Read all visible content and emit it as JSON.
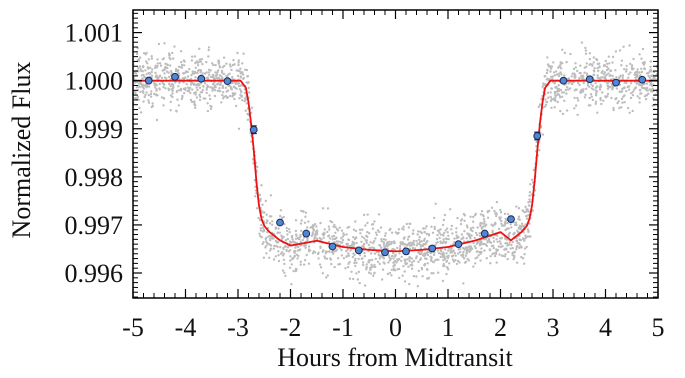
{
  "chart_data": {
    "type": "scatter",
    "title": "",
    "xlabel": "Hours from Midtransit",
    "ylabel": "Normalized Flux",
    "xlim": [
      -5,
      5
    ],
    "ylim": [
      0.99548,
      1.00147
    ],
    "xticks": [
      -5,
      -4,
      -3,
      -2,
      -1,
      0,
      1,
      2,
      3,
      4,
      5
    ],
    "xtick_labels": [
      "-5",
      "-4",
      "-3",
      "-2",
      "-1",
      "0",
      "1",
      "2",
      "3",
      "4",
      "5"
    ],
    "yticks": [
      0.996,
      0.997,
      0.998,
      0.999,
      1.0,
      1.001
    ],
    "ytick_labels": [
      "0.996",
      "0.997",
      "0.998",
      "0.999",
      "1.000",
      "1.001"
    ],
    "grid": false,
    "colors": {
      "raw_points": "#bdbdbd",
      "model_line": "#ee1111",
      "binned_fill": "#4f86d6",
      "binned_edge": "#1a2a55",
      "axes": "#000000"
    },
    "series": [
      {
        "kind": "scatter",
        "marker": "dot",
        "description_of_values": "unbinned normalized flux, scatter ~0.00028 about the transit model",
        "x_range": [
          -5,
          5
        ]
      },
      {
        "kind": "line",
        "x": [
          -5.0,
          -2.95,
          -2.85,
          -2.8,
          -2.75,
          -2.7,
          -2.65,
          -2.6,
          -2.55,
          -2.5,
          -2.4,
          -2.2,
          -2.0,
          -1.5,
          -1.0,
          -0.5,
          0.0,
          0.5,
          1.0,
          1.5,
          2.0,
          2.2,
          2.4,
          2.5,
          2.55,
          2.6,
          2.65,
          2.7,
          2.75,
          2.8,
          2.85,
          2.95,
          5.0
        ],
        "y": [
          1.0,
          1.0,
          0.99985,
          0.99955,
          0.9991,
          0.99855,
          0.9979,
          0.9974,
          0.99712,
          0.99698,
          0.99685,
          0.99668,
          0.99657,
          0.99667,
          0.99654,
          0.99648,
          0.99645,
          0.99648,
          0.99654,
          0.99667,
          0.99685,
          0.99668,
          0.99685,
          0.99698,
          0.99712,
          0.9974,
          0.9979,
          0.99855,
          0.9991,
          0.99955,
          0.99985,
          1.0,
          1.0
        ]
      },
      {
        "kind": "errorbar",
        "marker": "circle",
        "x": [
          -4.7,
          -4.2,
          -3.7,
          -3.2,
          -2.7,
          -2.2,
          -1.7,
          -1.2,
          -0.7,
          -0.2,
          0.2,
          0.7,
          1.2,
          1.7,
          2.2,
          2.7,
          3.2,
          3.7,
          4.2,
          4.7
        ],
        "y": [
          1.0,
          1.00008,
          1.00004,
          0.99999,
          0.99898,
          0.99705,
          0.99682,
          0.99655,
          0.99647,
          0.99643,
          0.99645,
          0.99651,
          0.9966,
          0.99682,
          0.99712,
          0.99885,
          1.0,
          1.00003,
          0.99996,
          1.00002
        ],
        "yerr": [
          3e-05,
          3e-05,
          3e-05,
          3e-05,
          8e-05,
          3e-05,
          3e-05,
          3e-05,
          3e-05,
          3e-05,
          3e-05,
          3e-05,
          3e-05,
          3e-05,
          3e-05,
          8e-05,
          3e-05,
          3e-05,
          3e-05,
          3e-05
        ]
      }
    ]
  }
}
